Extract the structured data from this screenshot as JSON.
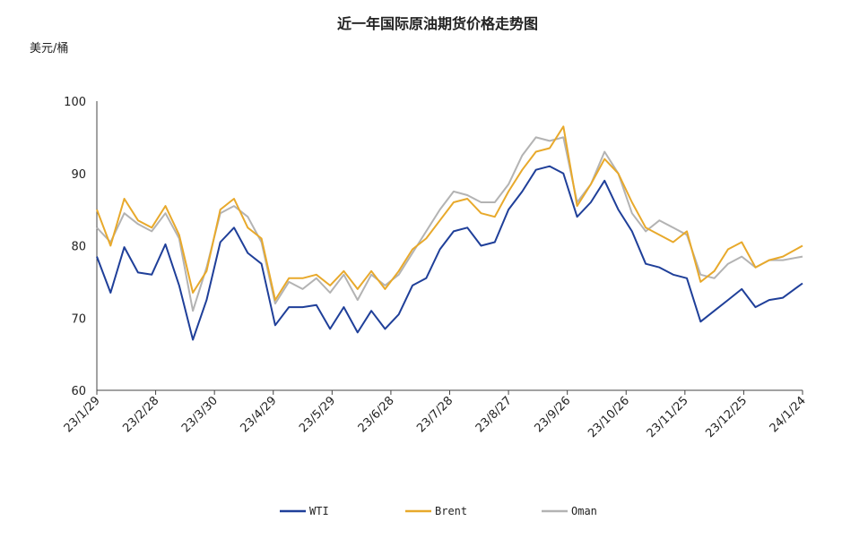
{
  "chart_data": {
    "type": "line",
    "title": "近一年国际原油期货价格走势图",
    "ylabel": "美元/桶",
    "ylim": [
      60,
      100
    ],
    "yticks": [
      60,
      70,
      80,
      90,
      100
    ],
    "xlim": [
      "2023-01-29",
      "2024-01-24"
    ],
    "xticks": [
      "23/1/29",
      "23/2/28",
      "23/3/30",
      "23/4/29",
      "23/5/29",
      "23/6/28",
      "23/7/28",
      "23/8/27",
      "23/9/26",
      "23/10/26",
      "23/11/25",
      "23/12/25",
      "24/1/24"
    ],
    "legend_position": "bottom",
    "x": [
      "2023-01-29",
      "2023-02-05",
      "2023-02-12",
      "2023-02-19",
      "2023-02-26",
      "2023-03-05",
      "2023-03-12",
      "2023-03-19",
      "2023-03-26",
      "2023-04-02",
      "2023-04-09",
      "2023-04-16",
      "2023-04-23",
      "2023-04-30",
      "2023-05-07",
      "2023-05-14",
      "2023-05-21",
      "2023-05-28",
      "2023-06-04",
      "2023-06-11",
      "2023-06-18",
      "2023-06-25",
      "2023-07-02",
      "2023-07-09",
      "2023-07-16",
      "2023-07-23",
      "2023-07-30",
      "2023-08-06",
      "2023-08-13",
      "2023-08-20",
      "2023-08-27",
      "2023-09-03",
      "2023-09-10",
      "2023-09-17",
      "2023-09-24",
      "2023-10-01",
      "2023-10-08",
      "2023-10-15",
      "2023-10-22",
      "2023-10-29",
      "2023-11-05",
      "2023-11-12",
      "2023-11-19",
      "2023-11-26",
      "2023-12-03",
      "2023-12-10",
      "2023-12-17",
      "2023-12-24",
      "2023-12-31",
      "2024-01-07",
      "2024-01-14",
      "2024-01-24"
    ],
    "series": [
      {
        "name": "WTI",
        "color": "#1f3f99",
        "values": [
          78.5,
          73.5,
          79.8,
          76.3,
          76.0,
          80.2,
          74.5,
          67.0,
          72.5,
          80.5,
          82.5,
          79.0,
          77.5,
          69.0,
          71.5,
          71.5,
          71.8,
          68.5,
          71.5,
          68.0,
          71.0,
          68.5,
          70.5,
          74.5,
          75.5,
          79.5,
          82.0,
          82.5,
          80.0,
          80.5,
          85.0,
          87.5,
          90.5,
          91.0,
          90.0,
          84.0,
          86.0,
          89.0,
          85.0,
          82.0,
          77.5,
          77.0,
          76.0,
          75.5,
          69.5,
          71.0,
          72.5,
          74.0,
          71.5,
          72.5,
          72.8,
          74.8
        ]
      },
      {
        "name": "Brent",
        "color": "#e8a92b",
        "values": [
          85.0,
          80.0,
          86.5,
          83.5,
          82.5,
          85.5,
          81.5,
          73.5,
          76.5,
          85.0,
          86.5,
          82.5,
          81.0,
          72.5,
          75.5,
          75.5,
          76.0,
          74.5,
          76.5,
          74.0,
          76.5,
          74.0,
          76.5,
          79.5,
          81.0,
          83.5,
          86.0,
          86.5,
          84.5,
          84.0,
          87.5,
          90.5,
          93.0,
          93.5,
          96.5,
          85.5,
          88.5,
          92.0,
          90.0,
          86.0,
          82.5,
          81.5,
          80.5,
          82.0,
          75.0,
          76.5,
          79.5,
          80.5,
          77.0,
          78.0,
          78.5,
          80.0
        ]
      },
      {
        "name": "Oman",
        "color": "#b3b3b3",
        "values": [
          82.5,
          80.5,
          84.5,
          83.0,
          82.0,
          84.5,
          81.0,
          71.0,
          77.0,
          84.5,
          85.5,
          84.0,
          80.5,
          72.0,
          75.0,
          74.0,
          75.5,
          73.5,
          76.0,
          72.5,
          76.0,
          74.5,
          76.0,
          79.0,
          82.0,
          85.0,
          87.5,
          87.0,
          86.0,
          86.0,
          88.5,
          92.5,
          95.0,
          94.5,
          95.0,
          86.0,
          88.5,
          93.0,
          90.0,
          84.5,
          82.0,
          83.5,
          82.5,
          81.5,
          76.0,
          75.5,
          77.5,
          78.5,
          77.0,
          78.0,
          78.0,
          78.5
        ]
      }
    ]
  }
}
